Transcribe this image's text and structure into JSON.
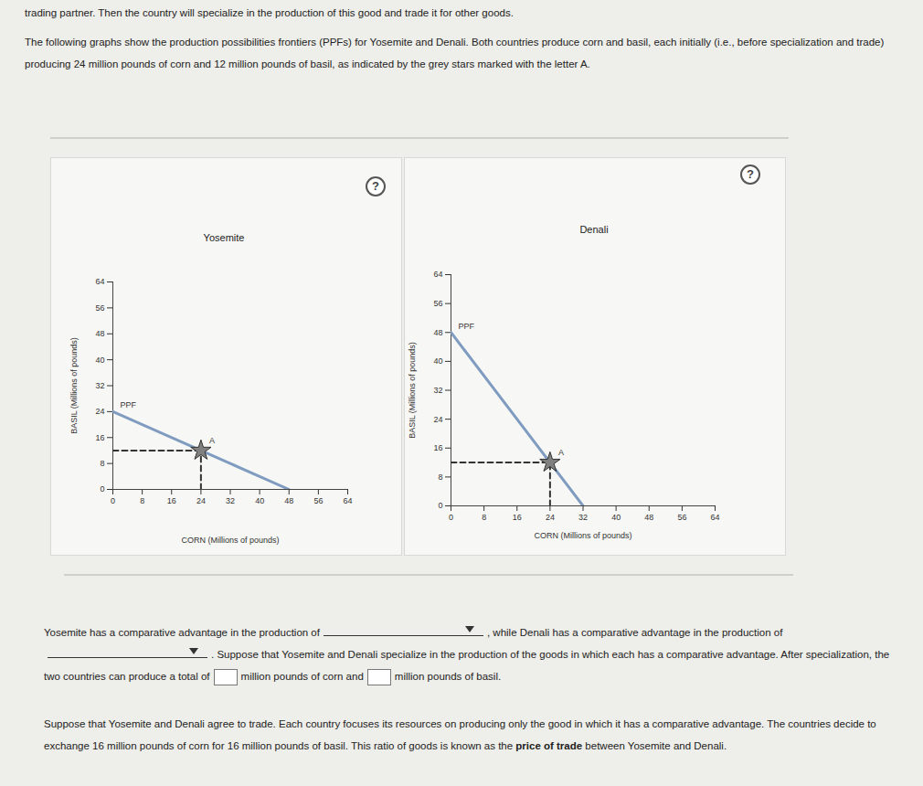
{
  "document": {
    "intro": "trading partner. Then the country will specialize in the production of this good and trade it for other goods.",
    "paragraph": "The following graphs show the production possibilities frontiers (PPFs) for Yosemite and Denali. Both countries produce corn and basil, each initially (i.e., before specialization and trade) producing 24 million pounds of corn and 12 million pounds of basil, as indicated by the grey stars marked with the letter A.",
    "help_icon": "?",
    "question": [
      "Yosemite has a comparative advantage in the production of",
      {
        "dropdown": true
      },
      ", while Denali has a comparative advantage in the production of",
      {
        "dropdown": true
      },
      ". Suppose that Yosemite and Denali specialize in the production of the goods in which each has a comparative advantage. After specialization, the two countries can produce a total of",
      {
        "input": true
      },
      "million pounds of corn and",
      {
        "input": true
      },
      "million pounds of basil."
    ],
    "trade_paragraph": [
      "Suppose that Yosemite and Denali agree to trade. Each country focuses its resources on producing only the good in which it has a comparative advantage. The countries decide to exchange 16 million pounds of corn for 16 million pounds of basil. This ratio of goods is known as the ",
      {
        "bold": "price of trade"
      },
      " between Yosemite and Denali."
    ]
  },
  "chart_data": [
    {
      "type": "line",
      "title": "Yosemite",
      "x_label": "CORN (Millions of pounds)",
      "y_label": "BASIL (Millions of pounds)",
      "xlim": [
        0,
        64
      ],
      "xticks": [
        0,
        8,
        16,
        24,
        32,
        40,
        48,
        56,
        64
      ],
      "ylim": [
        0,
        64
      ],
      "yticks": [
        0,
        8,
        16,
        24,
        32,
        40,
        48,
        56,
        64
      ],
      "grid": false,
      "series": [
        {
          "name": "PPF",
          "color": "#7f9cc0",
          "line_style": "solid",
          "x": [
            0,
            48
          ],
          "values": [
            24,
            0
          ]
        }
      ],
      "points": [
        {
          "label": "A",
          "x": 24,
          "y": 12,
          "color": "#808080",
          "marker": "star",
          "line_style": "dashed"
        }
      ]
    },
    {
      "type": "line",
      "title": "Denali",
      "x_label": "CORN (Millions of pounds)",
      "y_label": "BASIL (Millions of pounds)",
      "xlim": [
        0,
        64
      ],
      "xticks": [
        0,
        8,
        16,
        24,
        32,
        40,
        48,
        56,
        64
      ],
      "ylim": [
        0,
        64
      ],
      "yticks": [
        0,
        8,
        16,
        24,
        32,
        40,
        48,
        56,
        64
      ],
      "grid": false,
      "series": [
        {
          "name": "PPF",
          "color": "#7f9cc0",
          "line_style": "solid",
          "x": [
            0,
            32
          ],
          "values": [
            48,
            0
          ]
        }
      ],
      "points": [
        {
          "label": "A",
          "x": 24,
          "y": 12,
          "color": "#808080",
          "marker": "star",
          "line_style": "dashed"
        }
      ]
    }
  ]
}
